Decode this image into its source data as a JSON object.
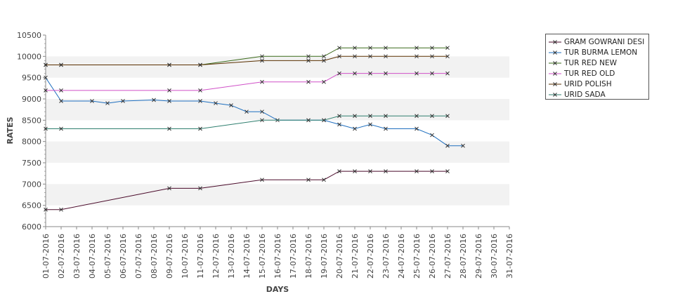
{
  "chart_data": {
    "type": "line",
    "xlabel": "DAYS",
    "ylabel": "RATES",
    "ylim": [
      6000,
      10500
    ],
    "yticks": [
      6000,
      6500,
      7000,
      7500,
      8000,
      8500,
      9000,
      9500,
      10000,
      10500
    ],
    "grid": "alternating horizontal bands",
    "legend_position": "right",
    "categories": [
      "01-07-2016",
      "02-07-2016",
      "03-07-2016",
      "04-07-2016",
      "05-07-2016",
      "06-07-2016",
      "07-07-2016",
      "08-07-2016",
      "09-07-2016",
      "10-07-2016",
      "11-07-2016",
      "12-07-2016",
      "13-07-2016",
      "14-07-2016",
      "15-07-2016",
      "16-07-2016",
      "17-07-2016",
      "18-07-2016",
      "19-07-2016",
      "20-07-2016",
      "21-07-2016",
      "22-07-2016",
      "23-07-2016",
      "24-07-2016",
      "25-07-2016",
      "26-07-2016",
      "27-07-2016",
      "28-07-2016",
      "29-07-2016",
      "30-07-2016",
      "31-07-2016"
    ],
    "series": [
      {
        "name": "GRAM GOWRANI DESI",
        "color": "#4a0a2a",
        "points": [
          [
            1,
            6400
          ],
          [
            2,
            6400
          ],
          [
            9,
            6900
          ],
          [
            11,
            6900
          ],
          [
            15,
            7100
          ],
          [
            18,
            7100
          ],
          [
            19,
            7100
          ],
          [
            20,
            7300
          ],
          [
            21,
            7300
          ],
          [
            22,
            7300
          ],
          [
            23,
            7300
          ],
          [
            25,
            7300
          ],
          [
            26,
            7300
          ],
          [
            27,
            7300
          ]
        ]
      },
      {
        "name": "TUR BURMA LEMON",
        "color": "#1f6fbf",
        "points": [
          [
            1,
            9500
          ],
          [
            2,
            8950
          ],
          [
            4,
            8950
          ],
          [
            5,
            8900
          ],
          [
            6,
            8950
          ],
          [
            8,
            8975
          ],
          [
            9,
            8950
          ],
          [
            11,
            8950
          ],
          [
            12,
            8900
          ],
          [
            13,
            8850
          ],
          [
            14,
            8700
          ],
          [
            15,
            8700
          ],
          [
            16,
            8500
          ],
          [
            18,
            8500
          ],
          [
            19,
            8500
          ],
          [
            20,
            8400
          ],
          [
            21,
            8300
          ],
          [
            22,
            8400
          ],
          [
            23,
            8300
          ],
          [
            25,
            8300
          ],
          [
            26,
            8150
          ],
          [
            27,
            7900
          ],
          [
            28,
            7900
          ]
        ]
      },
      {
        "name": "TUR RED NEW",
        "color": "#3a6a1a",
        "points": [
          [
            1,
            9800
          ],
          [
            2,
            9800
          ],
          [
            9,
            9800
          ],
          [
            11,
            9800
          ],
          [
            15,
            10000
          ],
          [
            18,
            10000
          ],
          [
            19,
            10000
          ],
          [
            20,
            10200
          ],
          [
            21,
            10200
          ],
          [
            22,
            10200
          ],
          [
            23,
            10200
          ],
          [
            25,
            10200
          ],
          [
            26,
            10200
          ],
          [
            27,
            10200
          ]
        ]
      },
      {
        "name": "TUR RED OLD",
        "color": "#d050c8",
        "points": [
          [
            1,
            9200
          ],
          [
            2,
            9200
          ],
          [
            9,
            9200
          ],
          [
            11,
            9200
          ],
          [
            15,
            9400
          ],
          [
            18,
            9400
          ],
          [
            19,
            9400
          ],
          [
            20,
            9600
          ],
          [
            21,
            9600
          ],
          [
            22,
            9600
          ],
          [
            23,
            9600
          ],
          [
            25,
            9600
          ],
          [
            26,
            9600
          ],
          [
            27,
            9600
          ]
        ]
      },
      {
        "name": "URID POLISH",
        "color": "#5a3000",
        "points": [
          [
            1,
            9800
          ],
          [
            2,
            9800
          ],
          [
            9,
            9800
          ],
          [
            11,
            9800
          ],
          [
            15,
            9900
          ],
          [
            18,
            9900
          ],
          [
            19,
            9900
          ],
          [
            20,
            10000
          ],
          [
            21,
            10000
          ],
          [
            22,
            10000
          ],
          [
            23,
            10000
          ],
          [
            25,
            10000
          ],
          [
            26,
            10000
          ],
          [
            27,
            10000
          ]
        ]
      },
      {
        "name": "URID SADA",
        "color": "#2f7f6f",
        "points": [
          [
            1,
            8300
          ],
          [
            2,
            8300
          ],
          [
            9,
            8300
          ],
          [
            11,
            8300
          ],
          [
            15,
            8500
          ],
          [
            18,
            8500
          ],
          [
            19,
            8500
          ],
          [
            20,
            8600
          ],
          [
            21,
            8600
          ],
          [
            22,
            8600
          ],
          [
            23,
            8600
          ],
          [
            25,
            8600
          ],
          [
            26,
            8600
          ],
          [
            27,
            8600
          ]
        ]
      }
    ]
  }
}
